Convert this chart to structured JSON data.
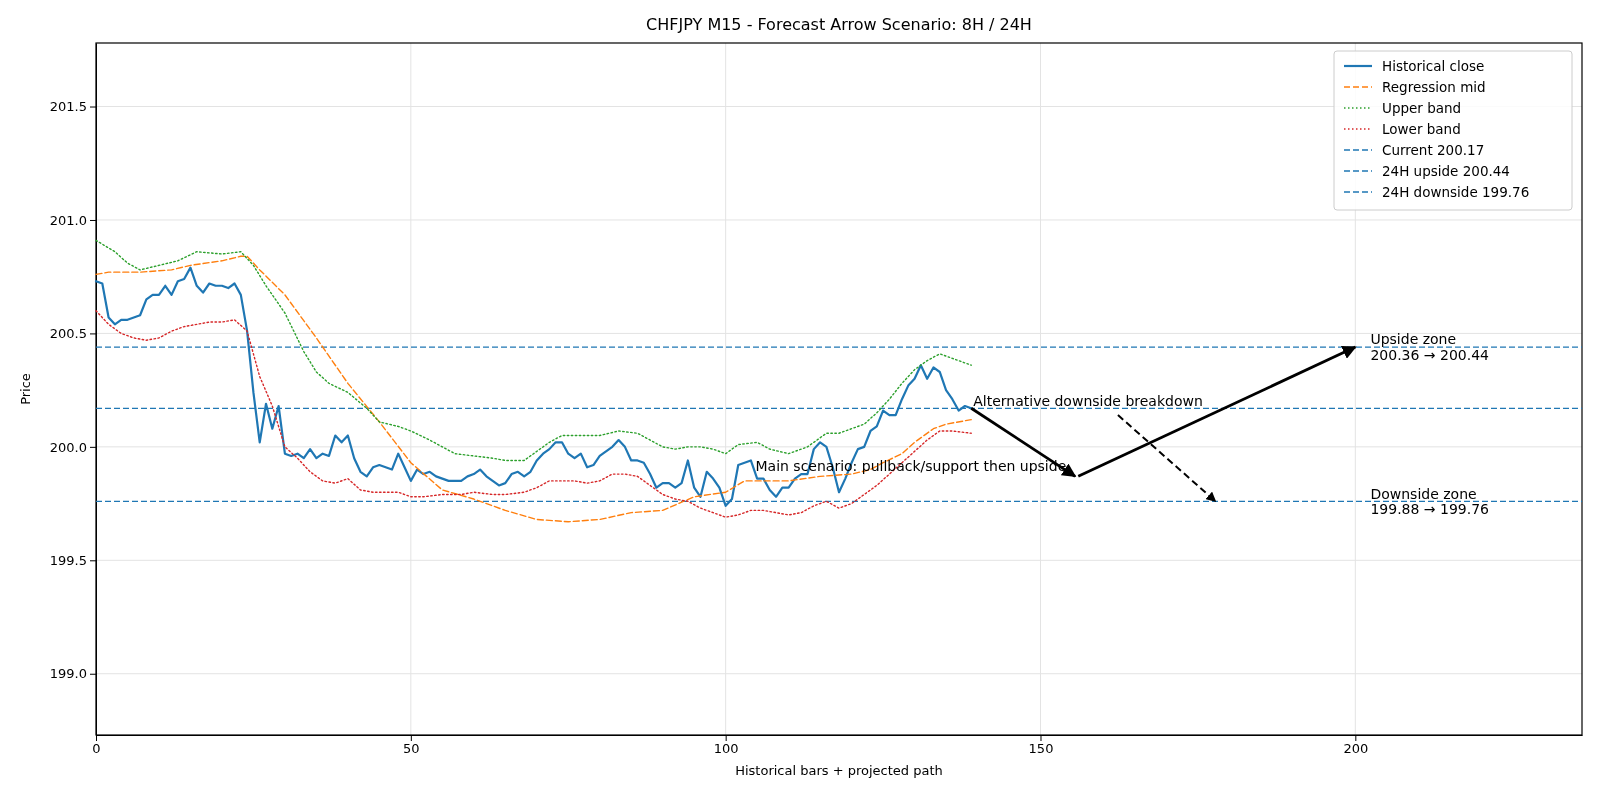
{
  "chart_data": {
    "type": "line",
    "title": "CHFJPY M15 - Forecast Arrow Scenario: 8H / 24H",
    "xlabel": "Historical bars + projected path",
    "ylabel": "Price",
    "xlim": [
      0,
      236
    ],
    "xticks": [
      0,
      50,
      100,
      150,
      200
    ],
    "ylim": [
      198.73,
      201.78
    ],
    "yticks": [
      {
        "value": 199,
        "label": "199.0"
      },
      {
        "value": 199.5,
        "label": "199.5"
      },
      {
        "value": 200,
        "label": "200.0"
      },
      {
        "value": 200.5,
        "label": "200.5"
      },
      {
        "value": 201,
        "label": "201.0"
      },
      {
        "value": 201.5,
        "label": "201.5"
      }
    ],
    "grid": true,
    "legend": "top right",
    "series": [
      {
        "name": "Historical close",
        "color": "#1f77b4",
        "line_style": "solid",
        "x": [
          0,
          1,
          2,
          3,
          4,
          5,
          6,
          7,
          8,
          9,
          10,
          11,
          12,
          13,
          14,
          15,
          16,
          17,
          18,
          19,
          20,
          21,
          22,
          23,
          24,
          25,
          26,
          27,
          28,
          29,
          30,
          31,
          32,
          33,
          34,
          35,
          36,
          37,
          38,
          39,
          40,
          41,
          42,
          43,
          44,
          45,
          46,
          47,
          48,
          49,
          50,
          51,
          52,
          53,
          54,
          55,
          56,
          57,
          58,
          59,
          60,
          61,
          62,
          63,
          64,
          65,
          66,
          67,
          68,
          69,
          70,
          71,
          72,
          73,
          74,
          75,
          76,
          77,
          78,
          79,
          80,
          81,
          82,
          83,
          84,
          85,
          86,
          87,
          88,
          89,
          90,
          91,
          92,
          93,
          94,
          95,
          96,
          97,
          98,
          99,
          100,
          101,
          102,
          103,
          104,
          105,
          106,
          107,
          108,
          109,
          110,
          111,
          112,
          113,
          114,
          115,
          116,
          117,
          118,
          119,
          120,
          121,
          122,
          123,
          124,
          125,
          126,
          127,
          128,
          129,
          130,
          131,
          132,
          133,
          134,
          135,
          136,
          137,
          138,
          139
        ],
        "values": [
          200.73,
          200.72,
          200.57,
          200.54,
          200.56,
          200.56,
          200.57,
          200.58,
          200.65,
          200.67,
          200.67,
          200.71,
          200.67,
          200.73,
          200.74,
          200.79,
          200.71,
          200.68,
          200.72,
          200.71,
          200.71,
          200.7,
          200.72,
          200.67,
          200.51,
          200.24,
          200.02,
          200.19,
          200.08,
          200.18,
          199.97,
          199.96,
          199.97,
          199.95,
          199.99,
          199.95,
          199.97,
          199.96,
          200.05,
          200.02,
          200.05,
          199.95,
          199.89,
          199.87,
          199.91,
          199.92,
          199.91,
          199.9,
          199.97,
          199.91,
          199.85,
          199.9,
          199.88,
          199.89,
          199.87,
          199.86,
          199.85,
          199.85,
          199.85,
          199.87,
          199.88,
          199.9,
          199.87,
          199.85,
          199.83,
          199.84,
          199.88,
          199.89,
          199.87,
          199.89,
          199.94,
          199.97,
          199.99,
          200.02,
          200.02,
          199.97,
          199.95,
          199.97,
          199.91,
          199.92,
          199.96,
          199.98,
          200.0,
          200.03,
          200.0,
          199.94,
          199.94,
          199.93,
          199.88,
          199.82,
          199.84,
          199.84,
          199.82,
          199.84,
          199.94,
          199.82,
          199.78,
          199.89,
          199.86,
          199.82,
          199.74,
          199.77,
          199.92,
          199.93,
          199.94,
          199.86,
          199.86,
          199.81,
          199.78,
          199.82,
          199.82,
          199.86,
          199.88,
          199.88,
          199.99,
          200.02,
          200.0,
          199.91,
          199.8,
          199.86,
          199.93,
          199.99,
          200.0,
          200.07,
          200.09,
          200.16,
          200.14,
          200.14,
          200.21,
          200.27,
          200.3,
          200.36,
          200.3,
          200.35,
          200.33,
          200.25,
          200.21,
          200.16,
          200.18,
          200.17
        ]
      },
      {
        "name": "Regression mid",
        "color": "#ff7f0e",
        "line_style": "dashed",
        "x": [
          0,
          2,
          7,
          12,
          15,
          20,
          23,
          24,
          26,
          30,
          35,
          40,
          45,
          50,
          55,
          60,
          65,
          70,
          75,
          80,
          85,
          90,
          95,
          100,
          103,
          105,
          110,
          115,
          120,
          123,
          125,
          128,
          130,
          133,
          135,
          139
        ],
        "values": [
          200.76,
          200.77,
          200.77,
          200.78,
          200.8,
          200.82,
          200.84,
          200.84,
          200.78,
          200.67,
          200.48,
          200.28,
          200.11,
          199.93,
          199.81,
          199.77,
          199.72,
          199.68,
          199.67,
          199.68,
          199.71,
          199.72,
          199.78,
          199.8,
          199.85,
          199.85,
          199.85,
          199.87,
          199.88,
          199.9,
          199.93,
          199.97,
          200.02,
          200.08,
          200.1,
          200.12
        ]
      },
      {
        "name": "Upper band",
        "color": "#2ca02c",
        "line_style": "dotted",
        "x": [
          0,
          3,
          5,
          7,
          10,
          13,
          16,
          20,
          23,
          25,
          27,
          30,
          33,
          35,
          37,
          40,
          43,
          45,
          48,
          50,
          53,
          55,
          57,
          60,
          63,
          65,
          68,
          70,
          72,
          74,
          77,
          80,
          83,
          86,
          88,
          90,
          92,
          94,
          96,
          98,
          100,
          102,
          105,
          107,
          110,
          113,
          116,
          118,
          120,
          122,
          124,
          126,
          128,
          130,
          132,
          134,
          136,
          139
        ],
        "values": [
          200.91,
          200.86,
          200.81,
          200.78,
          200.8,
          200.82,
          200.86,
          200.85,
          200.86,
          200.8,
          200.71,
          200.59,
          200.42,
          200.33,
          200.28,
          200.24,
          200.17,
          200.11,
          200.09,
          200.07,
          200.03,
          200.0,
          199.97,
          199.96,
          199.95,
          199.94,
          199.94,
          199.98,
          200.02,
          200.05,
          200.05,
          200.05,
          200.07,
          200.06,
          200.03,
          200.0,
          199.99,
          200.0,
          200.0,
          199.99,
          199.97,
          200.01,
          200.02,
          199.99,
          199.97,
          200.0,
          200.06,
          200.06,
          200.08,
          200.1,
          200.15,
          200.21,
          200.28,
          200.34,
          200.38,
          200.41,
          200.39,
          200.36
        ]
      },
      {
        "name": "Lower band",
        "color": "#d62728",
        "line_style": "dotted",
        "x": [
          0,
          2,
          4,
          6,
          8,
          10,
          12,
          14,
          16,
          18,
          20,
          22,
          24,
          26,
          28,
          30,
          32,
          34,
          36,
          38,
          40,
          42,
          44,
          46,
          48,
          50,
          52,
          55,
          58,
          60,
          63,
          65,
          68,
          70,
          72,
          74,
          76,
          78,
          80,
          82,
          84,
          86,
          88,
          90,
          92,
          94,
          96,
          98,
          100,
          102,
          104,
          106,
          108,
          110,
          112,
          114,
          116,
          118,
          120,
          122,
          124,
          126,
          128,
          130,
          132,
          134,
          136,
          139
        ],
        "values": [
          200.6,
          200.54,
          200.5,
          200.48,
          200.47,
          200.48,
          200.51,
          200.53,
          200.54,
          200.55,
          200.55,
          200.56,
          200.51,
          200.31,
          200.18,
          200.0,
          199.95,
          199.89,
          199.85,
          199.84,
          199.86,
          199.81,
          199.8,
          199.8,
          199.8,
          199.78,
          199.78,
          199.79,
          199.79,
          199.8,
          199.79,
          199.79,
          199.8,
          199.82,
          199.85,
          199.85,
          199.85,
          199.84,
          199.85,
          199.88,
          199.88,
          199.87,
          199.83,
          199.79,
          199.77,
          199.76,
          199.73,
          199.71,
          199.69,
          199.7,
          199.72,
          199.72,
          199.71,
          199.7,
          199.71,
          199.74,
          199.76,
          199.73,
          199.75,
          199.79,
          199.83,
          199.88,
          199.93,
          199.98,
          200.03,
          200.07,
          200.07,
          200.06
        ]
      }
    ],
    "ref_lines": [
      {
        "axis": "y",
        "value": 200.17,
        "label": "Current 200.17",
        "color": "#1f77b4",
        "line_style": "dashed"
      },
      {
        "axis": "y",
        "value": 200.44,
        "label": "24H upside 200.44",
        "color": "#1f77b4",
        "line_style": "dashed"
      },
      {
        "axis": "y",
        "value": 199.76,
        "label": "24H downside 199.76",
        "color": "#1f77b4",
        "line_style": "dashed"
      }
    ],
    "annotations": [
      {
        "text": "Main scenario: pullback/support then upside",
        "x": 200,
        "y": 200.44
      },
      {
        "text": "Alternative downside breakdown",
        "x": 177.8,
        "y": 199.76
      },
      {
        "text": "Upside zone\n200.36 → 200.44",
        "x": 202.4,
        "y": 200.44
      },
      {
        "text": "Downside zone\n199.88 → 199.76",
        "x": 202.4,
        "y": 199.76
      }
    ]
  }
}
